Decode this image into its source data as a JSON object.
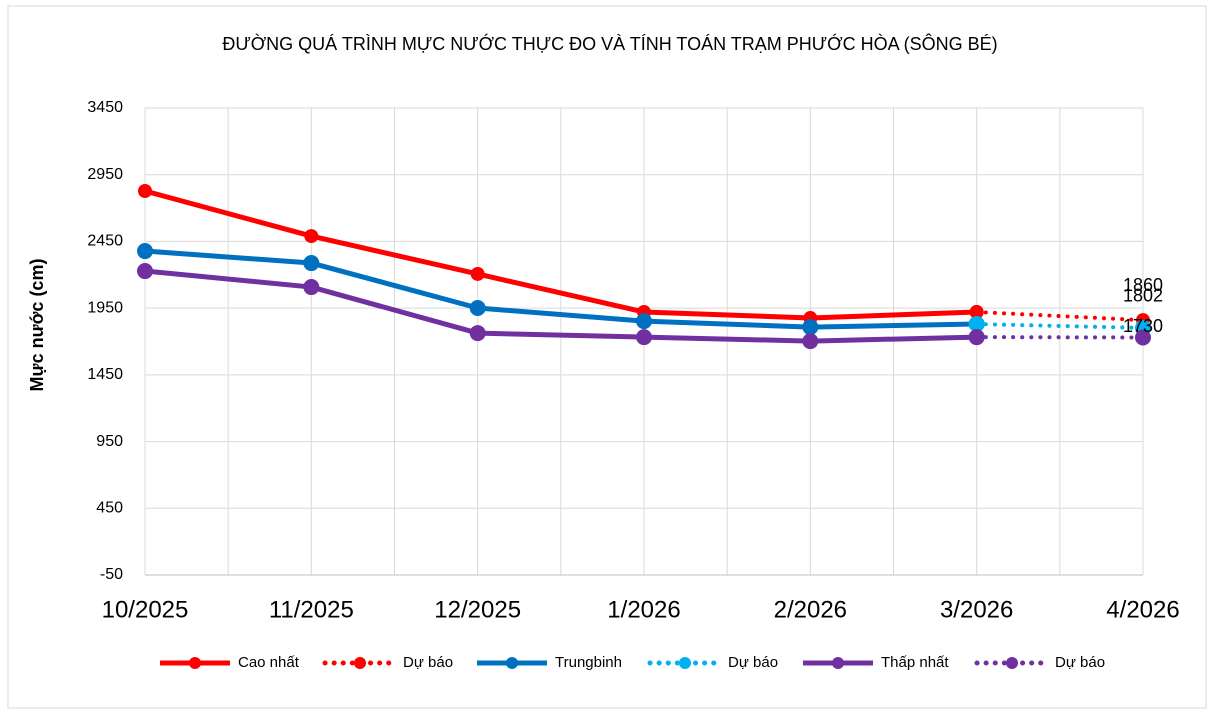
{
  "chart_data": {
    "type": "line",
    "title": "ĐƯỜNG QUÁ TRÌNH MỰC  NƯỚC THỰC ĐO VÀ TÍNH TOÁN TRẠM PHƯỚC HÒA (SÔNG BÉ)",
    "y_label": "Mực nước (cm)",
    "categories": [
      "10/2025",
      "11/2025",
      "12/2025",
      "1/2026",
      "2/2026",
      "3/2026",
      "4/2026"
    ],
    "ylim": [
      -50,
      3450
    ],
    "yticks": [
      -50,
      450,
      950,
      1450,
      1950,
      2450,
      2950,
      3450
    ],
    "grid": true,
    "legend": "bottom",
    "series": [
      {
        "name": "Cao nhất",
        "color": "#ff0000",
        "dash": "solid",
        "values": [
          2828,
          2490,
          2206,
          1921,
          1876,
          1921,
          null
        ]
      },
      {
        "name": "Dự báo",
        "color": "#ff0000",
        "dash": "dot",
        "show_last_label": true,
        "values": [
          null,
          null,
          null,
          null,
          null,
          1921,
          1860
        ]
      },
      {
        "name": "Trungbinh",
        "color": "#0070c0",
        "dash": "solid",
        "values": [
          2378,
          2288,
          1951,
          1853,
          1808,
          1831,
          null
        ]
      },
      {
        "name": "Dự báo",
        "color": "#00b0f0",
        "dash": "dot",
        "show_last_label": true,
        "values": [
          null,
          null,
          null,
          null,
          null,
          1831,
          1802
        ]
      },
      {
        "name": "Thấp nhất",
        "color": "#7030a0",
        "dash": "solid",
        "values": [
          2228,
          2108,
          1763,
          1733,
          1703,
          1733,
          null
        ]
      },
      {
        "name": "Dự báo",
        "color": "#7030a0",
        "dash": "dot",
        "show_last_label": true,
        "values": [
          null,
          null,
          null,
          null,
          null,
          1733,
          1730
        ]
      }
    ]
  }
}
